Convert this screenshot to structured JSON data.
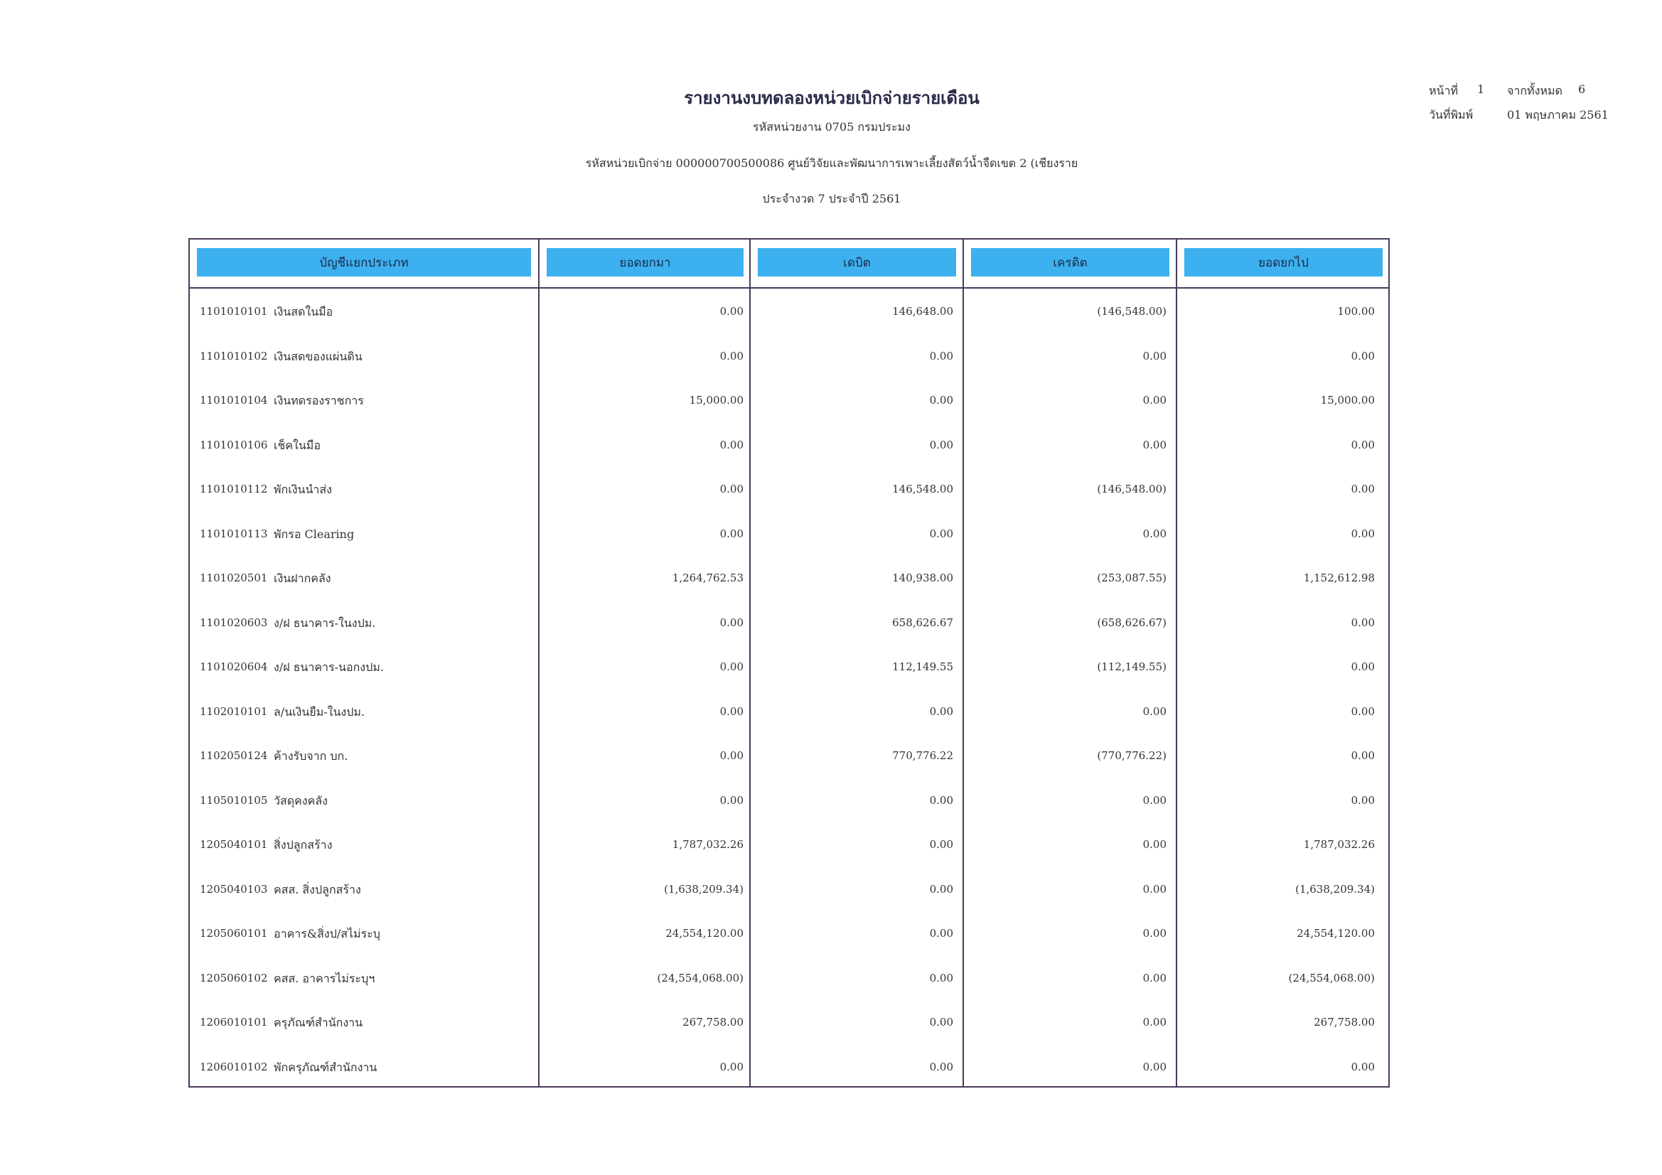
{
  "report": {
    "title": "รายงานงบทดลองหน่วยเบิกจ่ายรายเดือน",
    "agency": "รหัสหน่วยงาน 0705 กรมประมง",
    "disbursing_unit": "รหัสหน่วยเบิกจ่าย 000000700500086 ศูนย์วิจัยและพัฒนาการเพาะเลี้ยงสัตว์น้ำจืดเขต 2 (เชียงราย",
    "period": "ประจำงวด 7 ประจำปี 2561"
  },
  "page_info": {
    "page_label": "หน้าที่",
    "page_number": "1",
    "total_label": "จากทั้งหมด",
    "total_pages": "6",
    "print_date_label": "วันที่พิมพ์",
    "print_date": "01 พฤษภาคม 2561"
  },
  "table": {
    "columns": [
      "บัญชีแยกประเภท",
      "ยอดยกมา",
      "เดบิต",
      "เครดิต",
      "ยอดยกไป"
    ],
    "rows": [
      {
        "code": "1101010101",
        "name": "เงินสดในมือ",
        "brought_forward": "0.00",
        "debit": "146,648.00",
        "credit": "(146,548.00)",
        "carried_forward": "100.00"
      },
      {
        "code": "1101010102",
        "name": "เงินสดของแผ่นดิน",
        "brought_forward": "0.00",
        "debit": "0.00",
        "credit": "0.00",
        "carried_forward": "0.00"
      },
      {
        "code": "1101010104",
        "name": "เงินทดรองราชการ",
        "brought_forward": "15,000.00",
        "debit": "0.00",
        "credit": "0.00",
        "carried_forward": "15,000.00"
      },
      {
        "code": "1101010106",
        "name": "เช็คในมือ",
        "brought_forward": "0.00",
        "debit": "0.00",
        "credit": "0.00",
        "carried_forward": "0.00"
      },
      {
        "code": "1101010112",
        "name": "พักเงินนำส่ง",
        "brought_forward": "0.00",
        "debit": "146,548.00",
        "credit": "(146,548.00)",
        "carried_forward": "0.00"
      },
      {
        "code": "1101010113",
        "name": "พักรอ Clearing",
        "brought_forward": "0.00",
        "debit": "0.00",
        "credit": "0.00",
        "carried_forward": "0.00"
      },
      {
        "code": "1101020501",
        "name": "เงินฝากคลัง",
        "brought_forward": "1,264,762.53",
        "debit": "140,938.00",
        "credit": "(253,087.55)",
        "carried_forward": "1,152,612.98"
      },
      {
        "code": "1101020603",
        "name": "ง/ฝ ธนาคาร-ในงปม.",
        "brought_forward": "0.00",
        "debit": "658,626.67",
        "credit": "(658,626.67)",
        "carried_forward": "0.00"
      },
      {
        "code": "1101020604",
        "name": "ง/ฝ ธนาคาร-นอกงปม.",
        "brought_forward": "0.00",
        "debit": "112,149.55",
        "credit": "(112,149.55)",
        "carried_forward": "0.00"
      },
      {
        "code": "1102010101",
        "name": "ล/นเงินยืม-ในงปม.",
        "brought_forward": "0.00",
        "debit": "0.00",
        "credit": "0.00",
        "carried_forward": "0.00"
      },
      {
        "code": "1102050124",
        "name": "ค้างรับจาก บก.",
        "brought_forward": "0.00",
        "debit": "770,776.22",
        "credit": "(770,776.22)",
        "carried_forward": "0.00"
      },
      {
        "code": "1105010105",
        "name": "วัสดุคงคลัง",
        "brought_forward": "0.00",
        "debit": "0.00",
        "credit": "0.00",
        "carried_forward": "0.00"
      },
      {
        "code": "1205040101",
        "name": "สิ่งปลูกสร้าง",
        "brought_forward": "1,787,032.26",
        "debit": "0.00",
        "credit": "0.00",
        "carried_forward": "1,787,032.26"
      },
      {
        "code": "1205040103",
        "name": "คสส. สิ่งปลูกสร้าง",
        "brought_forward": "(1,638,209.34)",
        "debit": "0.00",
        "credit": "0.00",
        "carried_forward": "(1,638,209.34)"
      },
      {
        "code": "1205060101",
        "name": "อาคาร&สิ่งป/สไม่ระบุ",
        "brought_forward": "24,554,120.00",
        "debit": "0.00",
        "credit": "0.00",
        "carried_forward": "24,554,120.00"
      },
      {
        "code": "1205060102",
        "name": "คสส. อาคารไม่ระบุฯ",
        "brought_forward": "(24,554,068.00)",
        "debit": "0.00",
        "credit": "0.00",
        "carried_forward": "(24,554,068.00)"
      },
      {
        "code": "1206010101",
        "name": "ครุภัณฑ์สำนักงาน",
        "brought_forward": "267,758.00",
        "debit": "0.00",
        "credit": "0.00",
        "carried_forward": "267,758.00"
      },
      {
        "code": "1206010102",
        "name": "พักครุภัณฑ์สำนักงาน",
        "brought_forward": "0.00",
        "debit": "0.00",
        "credit": "0.00",
        "carried_forward": "0.00"
      }
    ]
  }
}
